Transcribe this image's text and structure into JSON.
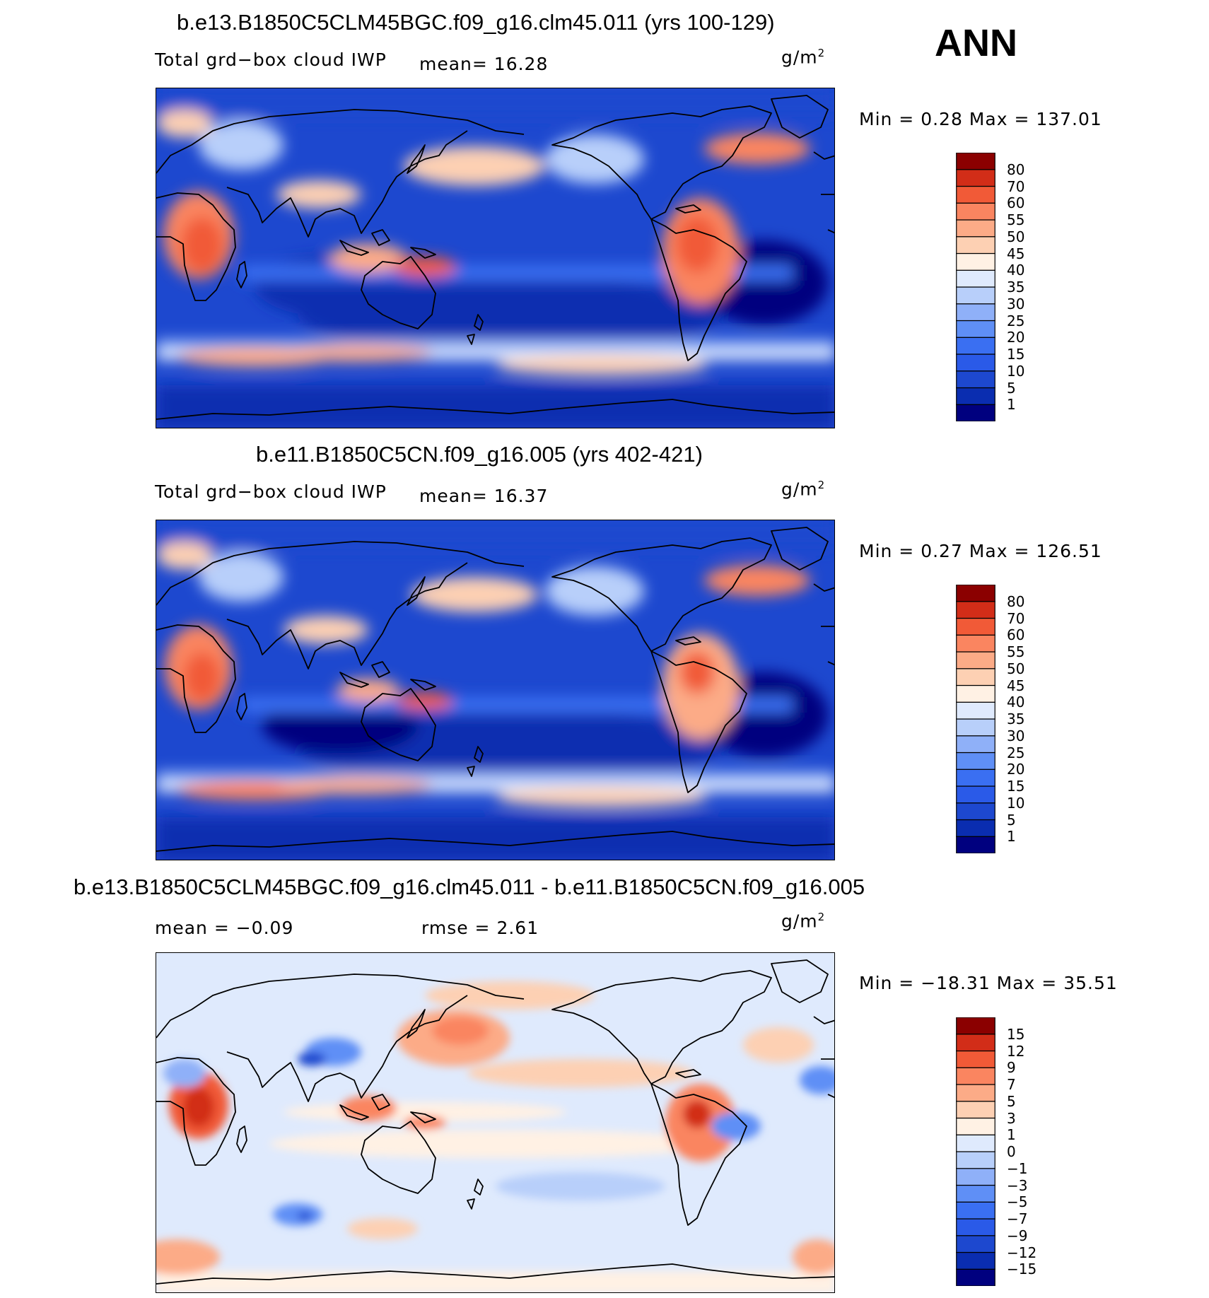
{
  "season": "ANN",
  "panels": [
    {
      "title": "b.e13.B1850C5CLM45BGC.f09_g16.clm45.011 (yrs 100-129)",
      "variable": "Total grd−box cloud IWP",
      "mean_text": "mean=   16.28",
      "units": "g/m",
      "units_sup": "2",
      "minmax_text": "Min =     0.28 Max  =  137.01"
    },
    {
      "title": "b.e11.B1850C5CN.f09_g16.005 (yrs 402-421)",
      "variable": "Total grd−box cloud IWP",
      "mean_text": "mean=   16.37",
      "units": "g/m",
      "units_sup": "2",
      "minmax_text": "Min =     0.27 Max  =  126.51"
    },
    {
      "title": "b.e13.B1850C5CLM45BGC.f09_g16.clm45.011 - b.e11.B1850C5CN.f09_g16.005",
      "mean_text": "mean  =   −0.09",
      "rmse_text": "rmse  =     2.61",
      "units": "g/m",
      "units_sup": "2",
      "minmax_text": "Min  = −18.31  Max  =    35.51"
    }
  ],
  "chart_data": [
    {
      "type": "heatmap",
      "title": "b.e13.B1850C5CLM45BGC.f09_g16.clm45.011 (yrs 100-129)",
      "field": "Total grd-box cloud IWP",
      "units": "g/m2",
      "mean": 16.28,
      "min": 0.28,
      "max": 137.01,
      "contour_levels": [
        1,
        5,
        10,
        15,
        20,
        25,
        30,
        35,
        40,
        45,
        50,
        55,
        60,
        70,
        80
      ],
      "colors": [
        "#00007f",
        "#0a2db0",
        "#1d48cf",
        "#2a5ae8",
        "#3a6ff2",
        "#5f8ff6",
        "#8fb0f8",
        "#b8cffa",
        "#dfeafd",
        "#fff1e4",
        "#fdd0b3",
        "#fcab87",
        "#fa8560",
        "#f15a37",
        "#d22d18",
        "#8b0000"
      ]
    },
    {
      "type": "heatmap",
      "title": "b.e11.B1850C5CN.f09_g16.005 (yrs 402-421)",
      "field": "Total grd-box cloud IWP",
      "units": "g/m2",
      "mean": 16.37,
      "min": 0.27,
      "max": 126.51,
      "contour_levels": [
        1,
        5,
        10,
        15,
        20,
        25,
        30,
        35,
        40,
        45,
        50,
        55,
        60,
        70,
        80
      ],
      "colors": [
        "#00007f",
        "#0a2db0",
        "#1d48cf",
        "#2a5ae8",
        "#3a6ff2",
        "#5f8ff6",
        "#8fb0f8",
        "#b8cffa",
        "#dfeafd",
        "#fff1e4",
        "#fdd0b3",
        "#fcab87",
        "#fa8560",
        "#f15a37",
        "#d22d18",
        "#8b0000"
      ]
    },
    {
      "type": "heatmap",
      "title": "b.e13.B1850C5CLM45BGC.f09_g16.clm45.011 - b.e11.B1850C5CN.f09_g16.005",
      "field": "difference",
      "units": "g/m2",
      "mean": -0.09,
      "rmse": 2.61,
      "min": -18.31,
      "max": 35.51,
      "contour_levels": [
        -15,
        -12,
        -9,
        -7,
        -5,
        -3,
        -1,
        0,
        1,
        3,
        5,
        7,
        9,
        12,
        15
      ],
      "colors": [
        "#00007f",
        "#0a2db0",
        "#1d48cf",
        "#2a5ae8",
        "#3a6ff2",
        "#5f8ff6",
        "#8fb0f8",
        "#b8cffa",
        "#dfeafd",
        "#fff1e4",
        "#fdd0b3",
        "#fcab87",
        "#fa8560",
        "#f15a37",
        "#d22d18",
        "#8b0000"
      ]
    }
  ]
}
